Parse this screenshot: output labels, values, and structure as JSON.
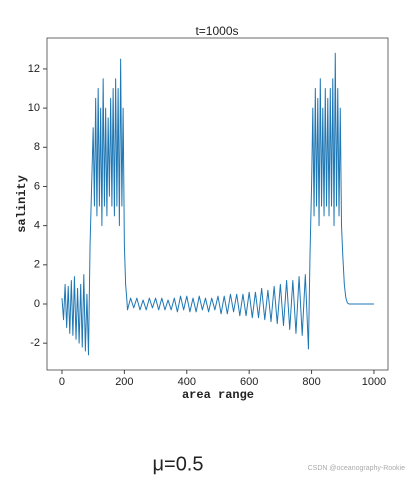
{
  "chart_data": {
    "type": "line",
    "title": "t=1000s",
    "x_label": "area range",
    "y_label": "salinity",
    "caption": "μ=0.5",
    "watermark": "CSDN @oceanography-Rookie",
    "xlim": [
      -48,
      1045
    ],
    "ylim": [
      -3.37,
      13.58
    ],
    "xticks": [
      0,
      200,
      400,
      600,
      800,
      1000
    ],
    "yticks": [
      -2,
      0,
      2,
      4,
      6,
      8,
      10,
      12
    ],
    "series": [
      {
        "name": "salinity",
        "color": "#1f77b4",
        "x": [
          0,
          5,
          10,
          15,
          20,
          25,
          30,
          35,
          40,
          45,
          50,
          55,
          60,
          65,
          70,
          75,
          80,
          85,
          90,
          95,
          100,
          104,
          108,
          112,
          116,
          120,
          124,
          128,
          132,
          136,
          140,
          144,
          148,
          152,
          156,
          160,
          164,
          168,
          172,
          176,
          180,
          184,
          188,
          192,
          196,
          200,
          204,
          208,
          210,
          220,
          230,
          240,
          250,
          260,
          270,
          280,
          290,
          300,
          310,
          320,
          330,
          340,
          350,
          360,
          370,
          380,
          390,
          400,
          410,
          420,
          430,
          440,
          450,
          460,
          470,
          480,
          490,
          500,
          510,
          520,
          530,
          540,
          550,
          560,
          570,
          580,
          590,
          600,
          610,
          620,
          630,
          640,
          650,
          660,
          670,
          680,
          690,
          700,
          710,
          720,
          730,
          740,
          750,
          760,
          770,
          780,
          790,
          795,
          800,
          804,
          808,
          812,
          816,
          820,
          824,
          828,
          832,
          836,
          840,
          844,
          848,
          852,
          856,
          860,
          864,
          868,
          872,
          876,
          880,
          884,
          888,
          892,
          896,
          900,
          905,
          910,
          915,
          920,
          1000
        ],
        "values": [
          0.3,
          -0.8,
          1,
          -1.2,
          0.9,
          -1.5,
          1.2,
          -1.6,
          1.4,
          -1.8,
          0.8,
          -2,
          1,
          -2.2,
          1.5,
          -2.4,
          0.5,
          -2.6,
          3,
          6,
          9,
          5,
          10.5,
          4.5,
          11,
          5,
          10,
          4,
          11.5,
          5,
          10,
          4.5,
          9.5,
          5.5,
          10.5,
          5,
          11,
          4.5,
          11.5,
          5,
          11,
          4,
          12.5,
          5,
          10,
          3,
          1,
          0.2,
          -0.3,
          0.3,
          -0.2,
          0.3,
          -0.3,
          0.2,
          -0.3,
          0.3,
          -0.2,
          0.3,
          -0.3,
          0.3,
          -0.3,
          0.2,
          -0.3,
          0.3,
          -0.4,
          0.4,
          -0.3,
          0.4,
          -0.4,
          0.3,
          -0.4,
          0.4,
          -0.3,
          0.3,
          -0.4,
          0.3,
          -0.3,
          0.4,
          -0.5,
          0.4,
          -0.5,
          0.5,
          -0.4,
          0.5,
          -0.6,
          0.5,
          -0.6,
          0.6,
          -0.7,
          0.6,
          -0.7,
          0.8,
          -0.8,
          0.7,
          -0.9,
          0.9,
          -1,
          1,
          -1.1,
          1.2,
          -1.3,
          1.2,
          -1.5,
          1.4,
          -1.6,
          1.5,
          -2.3,
          2.5,
          6,
          10,
          4.5,
          11,
          5,
          10.5,
          4,
          11.5,
          5,
          10,
          4.5,
          11,
          5,
          10.5,
          4.5,
          11,
          5,
          11.5,
          4,
          12.8,
          5,
          11,
          4.5,
          10,
          4,
          2.5,
          1,
          0.3,
          0.05,
          0,
          0
        ]
      }
    ]
  }
}
